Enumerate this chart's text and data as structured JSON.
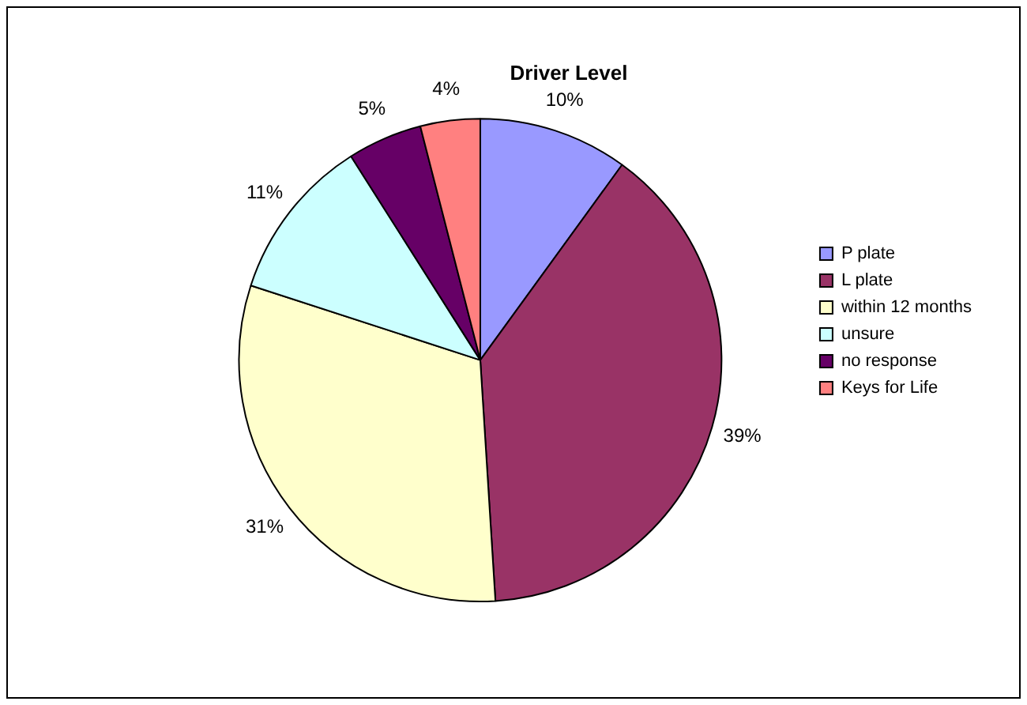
{
  "chart_data": {
    "type": "pie",
    "title": "Driver Level",
    "categories": [
      "P plate",
      "L plate",
      "within 12 months",
      "unsure",
      "no response",
      "Keys for Life"
    ],
    "values": [
      10,
      39,
      31,
      11,
      5,
      4
    ],
    "value_labels": [
      "10%",
      "39%",
      "31%",
      "11%",
      "5%",
      "4%"
    ],
    "colors": [
      "#9999ff",
      "#993366",
      "#ffffcc",
      "#ccffff",
      "#660066",
      "#ff8080"
    ],
    "legend": "right"
  }
}
